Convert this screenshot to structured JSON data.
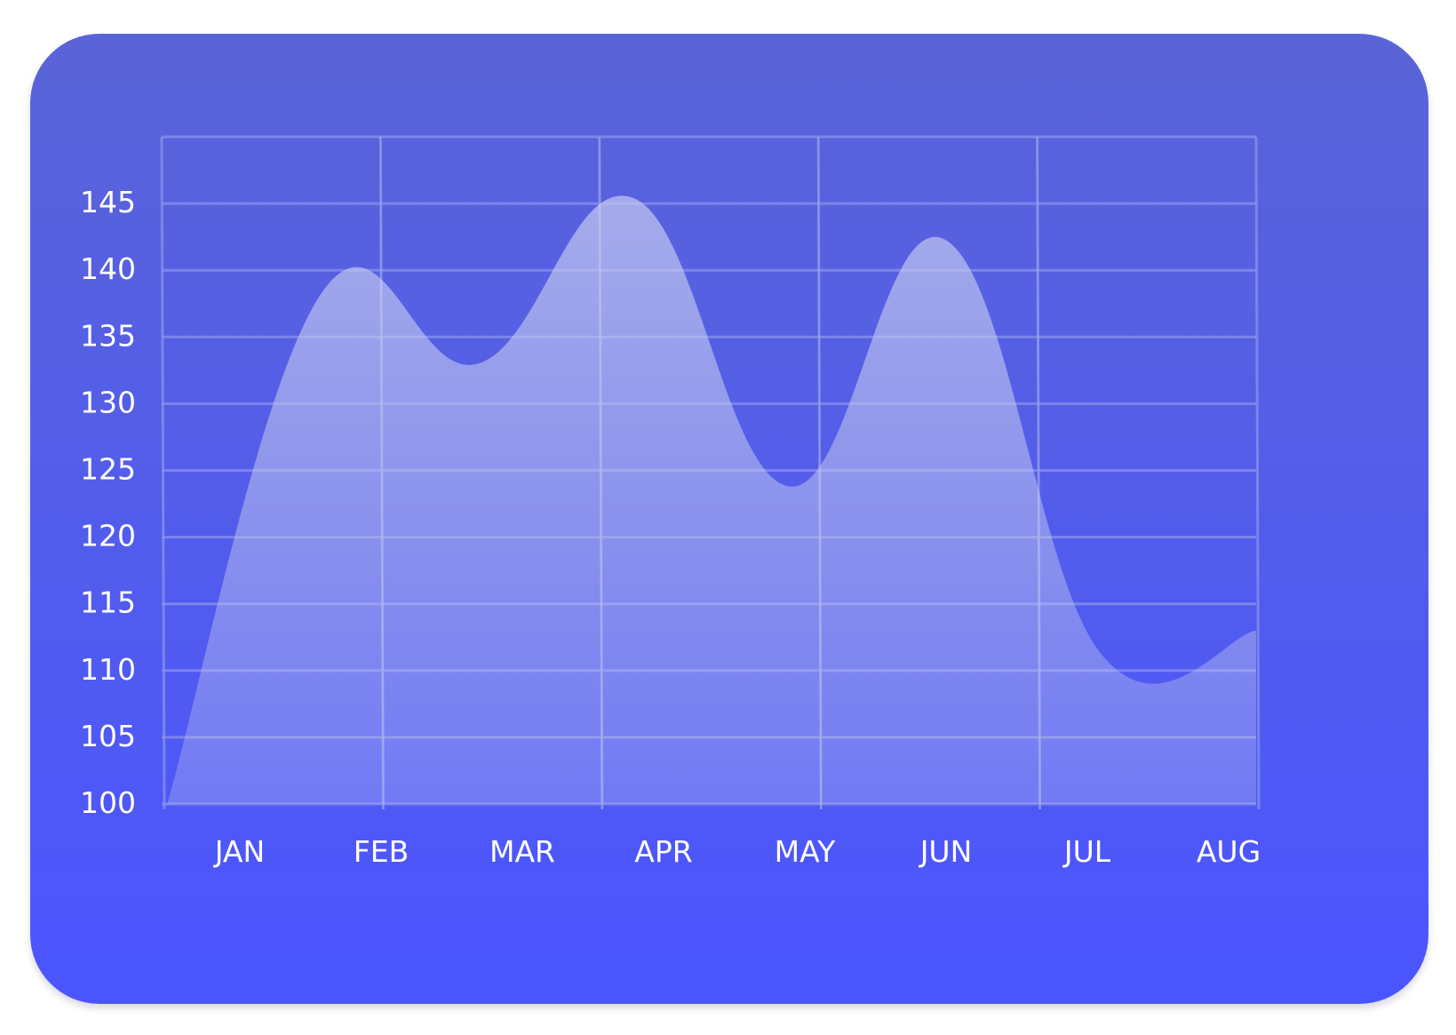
{
  "chart_data": {
    "type": "area",
    "categories": [
      "JAN",
      "FEB",
      "MAR",
      "APR",
      "MAY",
      "JUN",
      "JUL",
      "AUG"
    ],
    "series": [
      {
        "values": [
          100,
          138.4,
          133,
          145.4,
          123.8,
          142.3,
          111.3,
          113
        ]
      }
    ],
    "title": "",
    "xlabel": "",
    "ylabel": "",
    "ylim": [
      100,
      145
    ],
    "yticks": [
      "100",
      "105",
      "110",
      "115",
      "120",
      "125",
      "130",
      "135",
      "140",
      "145"
    ],
    "grid": true,
    "legend": "none",
    "colors": {
      "background_top": "#5A64D7",
      "background_bottom": "#4B55FF",
      "area_fill": "#C3C8F0",
      "grid": "#8A93EA",
      "text": "#FFFFFF"
    }
  }
}
